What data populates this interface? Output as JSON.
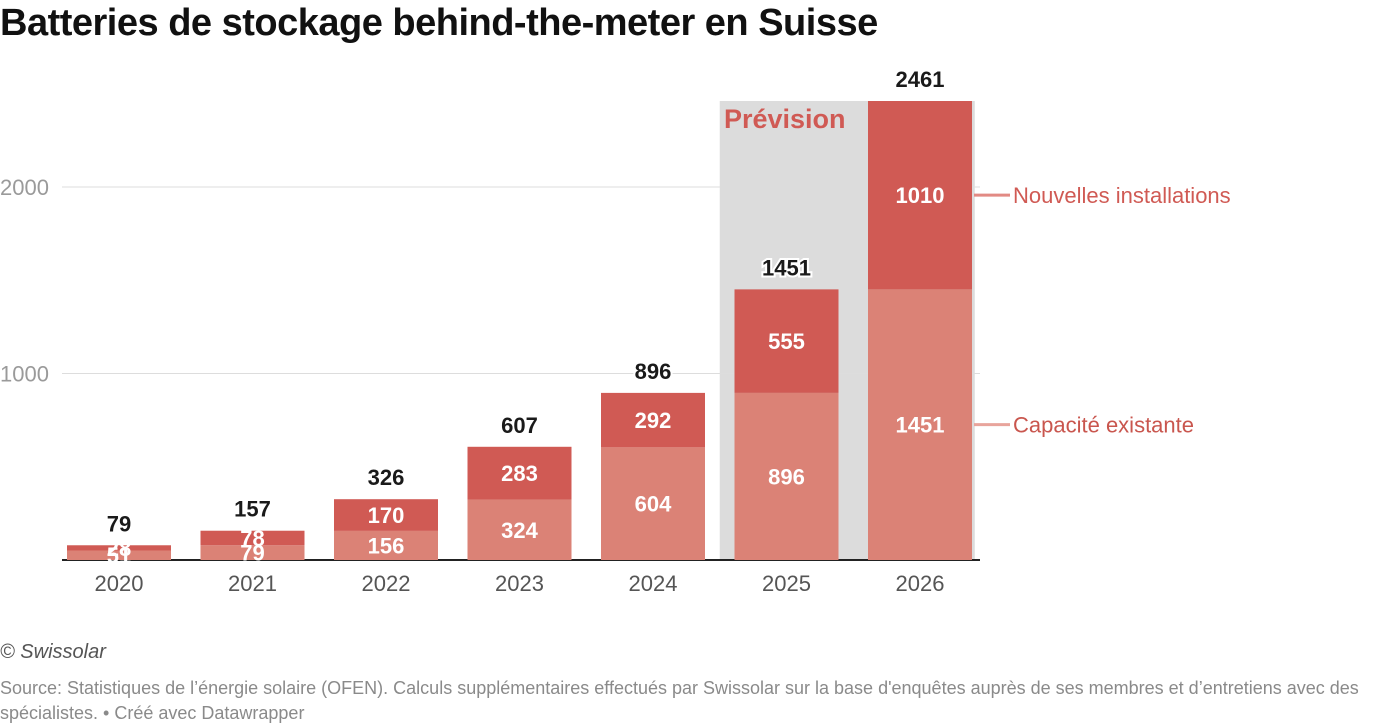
{
  "title": "Batteries de stockage behind-the-meter en Suisse",
  "credit": "© Swissolar",
  "source": "Source: Statistiques de l’énergie solaire (OFEN). Calculs supplémentaires effectués par Swissolar sur la base d'enquêtes auprès de ses membres et d’entretiens avec des spécialistes. • Créé avec Datawrapper",
  "colors": {
    "existing": "#db8276",
    "new": "#d05a54",
    "forecast_bg": "#dcdcdc",
    "gridline": "#dddddd",
    "axis": "#222222"
  },
  "chart_data": {
    "type": "bar",
    "stacked": true,
    "title": "Batteries de stockage behind-the-meter en Suisse",
    "xlabel": "",
    "ylabel": "",
    "ylim": [
      0,
      2461
    ],
    "yticks": [
      1000,
      2000
    ],
    "categories": [
      "2020",
      "2021",
      "2022",
      "2023",
      "2024",
      "2025",
      "2026"
    ],
    "series": [
      {
        "name": "Capacité existante",
        "values": [
          51,
          79,
          156,
          324,
          604,
          896,
          1451
        ],
        "labels": [
          "51",
          "79",
          "156",
          "324",
          "604",
          "896",
          "1451"
        ]
      },
      {
        "name": "Nouvelles installations",
        "values": [
          28,
          78,
          170,
          283,
          292,
          555,
          1010
        ],
        "labels": [
          "28",
          "78",
          "170",
          "283",
          "292",
          "555",
          "1010"
        ]
      }
    ],
    "totals": [
      "79",
      "157",
      "326",
      "607",
      "896",
      "1451",
      "2461"
    ],
    "forecast": {
      "label": "Prévision",
      "categories": [
        "2025",
        "2026"
      ]
    },
    "legend_position": "right"
  }
}
